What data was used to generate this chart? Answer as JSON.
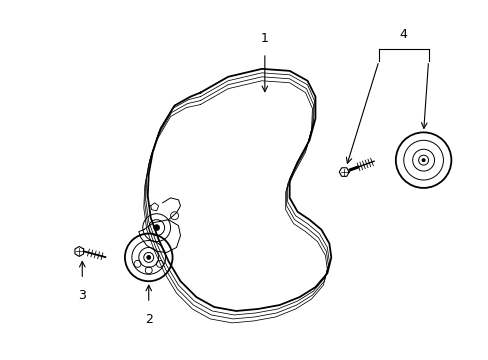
{
  "background_color": "#ffffff",
  "line_color": "#000000",
  "lw_main": 1.3,
  "lw_thin": 0.7,
  "lw_rib": 0.55,
  "label_fontsize": 9,
  "figsize": [
    4.89,
    3.6
  ],
  "dpi": 100,
  "belt_outer": {
    "x": [
      195,
      220,
      255,
      285,
      300,
      305,
      305,
      300,
      295,
      295,
      305,
      318,
      330,
      338,
      340,
      335,
      325,
      308,
      288,
      268,
      248,
      228,
      208,
      192,
      178,
      168,
      160,
      155,
      152,
      152,
      155,
      163,
      175,
      185,
      195
    ],
    "y_img": [
      95,
      80,
      72,
      74,
      82,
      96,
      116,
      138,
      158,
      175,
      192,
      205,
      215,
      228,
      245,
      262,
      278,
      290,
      298,
      302,
      305,
      305,
      300,
      290,
      276,
      258,
      238,
      218,
      198,
      178,
      158,
      135,
      113,
      100,
      95
    ]
  },
  "belt_rib1": {
    "x": [
      195,
      220,
      255,
      285,
      300,
      305,
      304,
      299,
      293,
      293,
      303,
      316,
      328,
      336,
      337,
      332,
      322,
      305,
      285,
      265,
      245,
      225,
      205,
      189,
      175,
      165,
      157,
      152,
      149,
      149,
      152,
      160,
      172,
      183,
      195
    ],
    "y_img": [
      99,
      84,
      76,
      78,
      86,
      100,
      120,
      142,
      162,
      179,
      196,
      209,
      219,
      232,
      249,
      266,
      282,
      294,
      302,
      306,
      309,
      309,
      304,
      294,
      280,
      262,
      242,
      222,
      202,
      182,
      162,
      138,
      116,
      103,
      99
    ]
  },
  "belt_rib2": {
    "x": [
      195,
      220,
      255,
      285,
      300,
      305,
      303,
      298,
      291,
      291,
      301,
      314,
      326,
      334,
      335,
      330,
      320,
      303,
      283,
      263,
      243,
      223,
      203,
      187,
      173,
      163,
      155,
      150,
      147,
      147,
      150,
      158,
      170,
      181,
      195
    ],
    "y_img": [
      103,
      88,
      80,
      82,
      90,
      104,
      124,
      146,
      166,
      183,
      200,
      213,
      223,
      236,
      253,
      270,
      286,
      298,
      306,
      310,
      313,
      313,
      308,
      298,
      284,
      266,
      246,
      226,
      206,
      186,
      166,
      141,
      119,
      106,
      103
    ]
  },
  "belt_rib3": {
    "x": [
      195,
      220,
      255,
      285,
      300,
      305,
      302,
      297,
      289,
      289,
      299,
      312,
      324,
      332,
      333,
      328,
      318,
      301,
      281,
      261,
      241,
      221,
      201,
      185,
      171,
      161,
      153,
      148,
      145,
      145,
      148,
      156,
      168,
      179,
      195
    ],
    "y_img": [
      107,
      92,
      84,
      86,
      94,
      108,
      128,
      150,
      170,
      187,
      204,
      217,
      227,
      240,
      257,
      274,
      290,
      302,
      310,
      314,
      317,
      317,
      312,
      302,
      288,
      270,
      250,
      230,
      210,
      190,
      170,
      144,
      122,
      109,
      107
    ]
  }
}
